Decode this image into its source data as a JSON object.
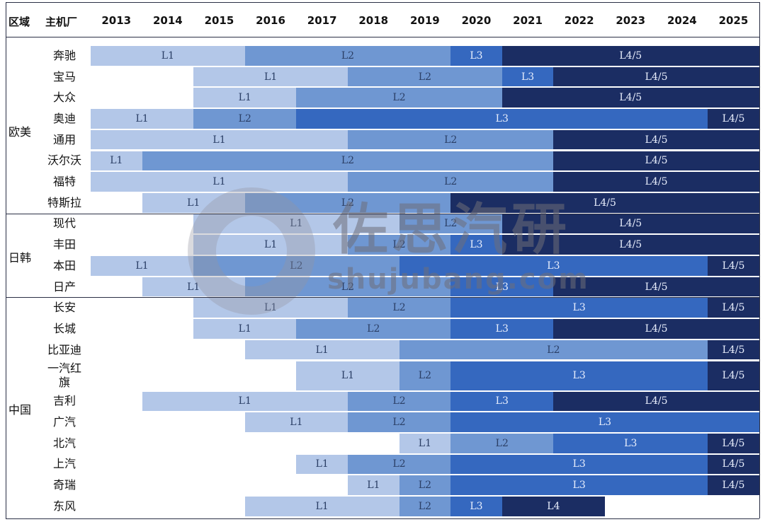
{
  "chart_data": {
    "type": "table",
    "headers": {
      "region": "区域",
      "maker": "主机厂"
    },
    "years": [
      "2013",
      "2014",
      "2015",
      "2016",
      "2017",
      "2018",
      "2019",
      "2020",
      "2021",
      "2022",
      "2023",
      "2024",
      "2025"
    ],
    "level_colors": {
      "L1": "#b3c7e8",
      "L2": "#6f97d2",
      "L3": "#3568bf",
      "L4/5": "#1b2d63",
      "L4": "#1b2d63"
    },
    "groups": [
      {
        "region": "欧美",
        "rows": [
          {
            "maker": "奔驰",
            "segments": [
              {
                "level": "L1",
                "start": 2013,
                "end": 2015
              },
              {
                "level": "L2",
                "start": 2016,
                "end": 2019
              },
              {
                "level": "L3",
                "start": 2020,
                "end": 2020
              },
              {
                "level": "L4/5",
                "start": 2021,
                "end": 2025
              }
            ]
          },
          {
            "maker": "宝马",
            "segments": [
              {
                "level": "L1",
                "start": 2015,
                "end": 2017
              },
              {
                "level": "L2",
                "start": 2018,
                "end": 2020
              },
              {
                "level": "L3",
                "start": 2021,
                "end": 2021
              },
              {
                "level": "L4/5",
                "start": 2022,
                "end": 2025
              }
            ]
          },
          {
            "maker": "大众",
            "segments": [
              {
                "level": "L1",
                "start": 2015,
                "end": 2016
              },
              {
                "level": "L2",
                "start": 2017,
                "end": 2020
              },
              {
                "level": "L4/5",
                "start": 2021,
                "end": 2025
              }
            ]
          },
          {
            "maker": "奥迪",
            "segments": [
              {
                "level": "L1",
                "start": 2013,
                "end": 2014
              },
              {
                "level": "L2",
                "start": 2015,
                "end": 2016
              },
              {
                "level": "L3",
                "start": 2017,
                "end": 2024
              },
              {
                "level": "L4/5",
                "start": 2025,
                "end": 2025
              }
            ]
          },
          {
            "maker": "通用",
            "segments": [
              {
                "level": "L1",
                "start": 2013,
                "end": 2017
              },
              {
                "level": "L2",
                "start": 2018,
                "end": 2021
              },
              {
                "level": "L4/5",
                "start": 2022,
                "end": 2025
              }
            ]
          },
          {
            "maker": "沃尔沃",
            "segments": [
              {
                "level": "L1",
                "start": 2013,
                "end": 2013
              },
              {
                "level": "L2",
                "start": 2014,
                "end": 2021
              },
              {
                "level": "L4/5",
                "start": 2022,
                "end": 2025
              }
            ]
          },
          {
            "maker": "福特",
            "segments": [
              {
                "level": "L1",
                "start": 2013,
                "end": 2017
              },
              {
                "level": "L2",
                "start": 2018,
                "end": 2021
              },
              {
                "level": "L4/5",
                "start": 2022,
                "end": 2025
              }
            ]
          },
          {
            "maker": "特斯拉",
            "segments": [
              {
                "level": "L1",
                "start": 2014,
                "end": 2015
              },
              {
                "level": "L2",
                "start": 2016,
                "end": 2019
              },
              {
                "level": "L4/5",
                "start": 2020,
                "end": 2025
              }
            ]
          }
        ]
      },
      {
        "region": "日韩",
        "rows": [
          {
            "maker": "现代",
            "segments": [
              {
                "level": "L1",
                "start": 2015,
                "end": 2018
              },
              {
                "level": "L2",
                "start": 2019,
                "end": 2020
              },
              {
                "level": "L4/5",
                "start": 2021,
                "end": 2025
              }
            ]
          },
          {
            "maker": "丰田",
            "segments": [
              {
                "level": "L1",
                "start": 2015,
                "end": 2017
              },
              {
                "level": "L2",
                "start": 2018,
                "end": 2019
              },
              {
                "level": "L3",
                "start": 2020,
                "end": 2020
              },
              {
                "level": "L4/5",
                "start": 2021,
                "end": 2025
              }
            ]
          },
          {
            "maker": "本田",
            "segments": [
              {
                "level": "L1",
                "start": 2013,
                "end": 2014
              },
              {
                "level": "L2",
                "start": 2015,
                "end": 2018
              },
              {
                "level": "L3",
                "start": 2019,
                "end": 2024
              },
              {
                "level": "L4/5",
                "start": 2025,
                "end": 2025
              }
            ]
          },
          {
            "maker": "日产",
            "segments": [
              {
                "level": "L1",
                "start": 2014,
                "end": 2015
              },
              {
                "level": "L2",
                "start": 2016,
                "end": 2019
              },
              {
                "level": "L3",
                "start": 2020,
                "end": 2021
              },
              {
                "level": "L4/5",
                "start": 2022,
                "end": 2025
              }
            ]
          }
        ]
      },
      {
        "region": "中国",
        "rows": [
          {
            "maker": "长安",
            "segments": [
              {
                "level": "L1",
                "start": 2015,
                "end": 2017
              },
              {
                "level": "L2",
                "start": 2018,
                "end": 2019
              },
              {
                "level": "L3",
                "start": 2020,
                "end": 2024
              },
              {
                "level": "L4/5",
                "start": 2025,
                "end": 2025
              }
            ]
          },
          {
            "maker": "长城",
            "segments": [
              {
                "level": "L1",
                "start": 2015,
                "end": 2016
              },
              {
                "level": "L2",
                "start": 2017,
                "end": 2019
              },
              {
                "level": "L3",
                "start": 2020,
                "end": 2021
              },
              {
                "level": "L4/5",
                "start": 2022,
                "end": 2025
              }
            ]
          },
          {
            "maker": "比亚迪",
            "segments": [
              {
                "level": "L1",
                "start": 2016,
                "end": 2018
              },
              {
                "level": "L2",
                "start": 2019,
                "end": 2024
              },
              {
                "level": "L4/5",
                "start": 2025,
                "end": 2025
              }
            ]
          },
          {
            "maker": "一汽红旗",
            "segments": [
              {
                "level": "L1",
                "start": 2017,
                "end": 2018
              },
              {
                "level": "L2",
                "start": 2019,
                "end": 2019
              },
              {
                "level": "L3",
                "start": 2020,
                "end": 2024
              },
              {
                "level": "L4/5",
                "start": 2025,
                "end": 2025
              }
            ]
          },
          {
            "maker": "吉利",
            "segments": [
              {
                "level": "L1",
                "start": 2014,
                "end": 2017
              },
              {
                "level": "L2",
                "start": 2018,
                "end": 2019
              },
              {
                "level": "L3",
                "start": 2020,
                "end": 2021
              },
              {
                "level": "L4/5",
                "start": 2022,
                "end": 2025
              }
            ]
          },
          {
            "maker": "广汽",
            "segments": [
              {
                "level": "L1",
                "start": 2016,
                "end": 2017
              },
              {
                "level": "L2",
                "start": 2018,
                "end": 2019
              },
              {
                "level": "L3",
                "start": 2020,
                "end": 2025
              }
            ]
          },
          {
            "maker": "北汽",
            "segments": [
              {
                "level": "L1",
                "start": 2019,
                "end": 2019
              },
              {
                "level": "L2",
                "start": 2020,
                "end": 2021
              },
              {
                "level": "L3",
                "start": 2022,
                "end": 2024
              },
              {
                "level": "L4/5",
                "start": 2025,
                "end": 2025
              }
            ]
          },
          {
            "maker": "上汽",
            "segments": [
              {
                "level": "L1",
                "start": 2017,
                "end": 2017
              },
              {
                "level": "L2",
                "start": 2018,
                "end": 2019
              },
              {
                "level": "L3",
                "start": 2020,
                "end": 2024
              },
              {
                "level": "L4/5",
                "start": 2025,
                "end": 2025
              }
            ]
          },
          {
            "maker": "奇瑞",
            "segments": [
              {
                "level": "L1",
                "start": 2018,
                "end": 2018
              },
              {
                "level": "L2",
                "start": 2019,
                "end": 2019
              },
              {
                "level": "L3",
                "start": 2020,
                "end": 2024
              },
              {
                "level": "L4/5",
                "start": 2025,
                "end": 2025
              }
            ]
          },
          {
            "maker": "东风",
            "segments": [
              {
                "level": "L1",
                "start": 2016,
                "end": 2018
              },
              {
                "level": "L2",
                "start": 2019,
                "end": 2019
              },
              {
                "level": "L3",
                "start": 2020,
                "end": 2020
              },
              {
                "level": "L4",
                "start": 2021,
                "end": 2022
              }
            ]
          }
        ]
      }
    ]
  },
  "watermark": {
    "brand": "佐思汽研",
    "domain": "shujubang.com"
  }
}
